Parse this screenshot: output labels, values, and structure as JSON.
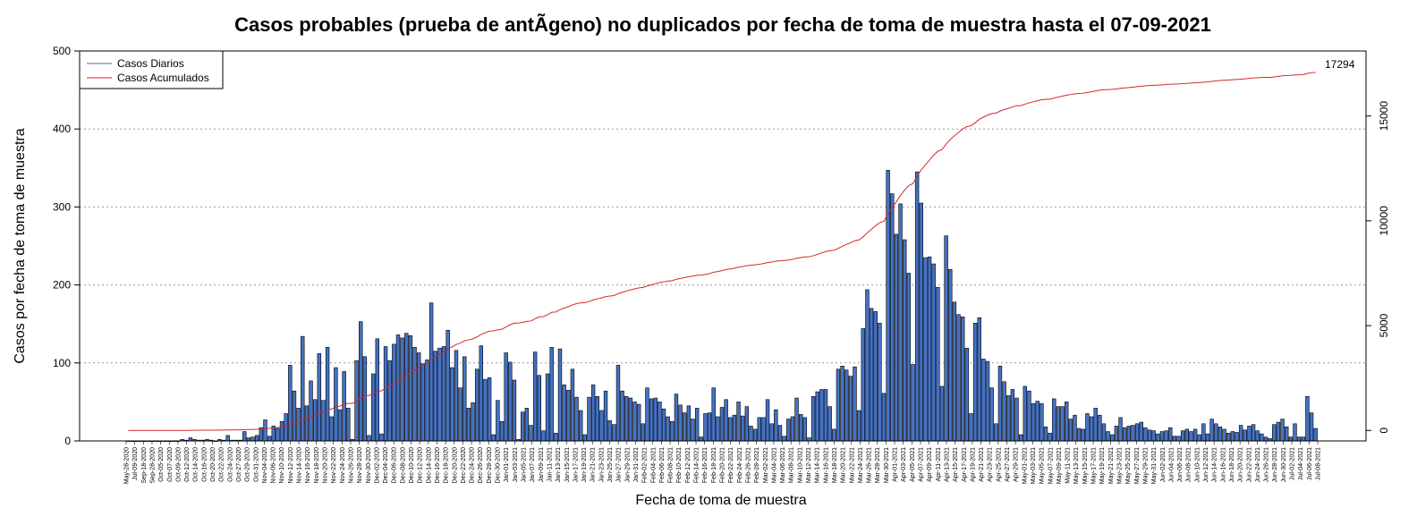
{
  "chart_data": {
    "type": "bar",
    "title": "Casos probables (prueba de antÃ­geno) no duplicados por fecha de toma de muestra hasta el 07-09-2021",
    "xlabel": "Fecha de toma de muestra",
    "ylabel": "Casos por fecha de toma de muestra",
    "ylim": [
      0,
      500
    ],
    "y_ticks": [
      0,
      100,
      200,
      300,
      400,
      500
    ],
    "y2lim": [
      -500,
      18100
    ],
    "y2_ticks": [
      0,
      5000,
      10000,
      15000
    ],
    "grid": "horizontal dotted",
    "legend_position": "top-left",
    "legend": [
      {
        "label": "Casos Diarios",
        "color": "#4a6fb0"
      },
      {
        "label": "Casos Acumulados",
        "color": "#d62728"
      }
    ],
    "bar_color": "#4472c4",
    "line_color": "#d62728",
    "cumulative_final_label": "17294",
    "x_tick_labels": [
      "May-28-2020",
      "Jul-09-2020",
      "Sep-18-2020",
      "Sep-28-2020",
      "Oct-05-2020",
      "Oct-07-2020",
      "Oct-09-2020",
      "Oct-12-2020",
      "Oct-14-2020",
      "Oct-16-2020",
      "Oct-20-2020",
      "Oct-22-2020",
      "Oct-24-2020",
      "Oct-27-2020",
      "Oct-29-2020",
      "Oct-31-2020",
      "Nov-04-2020",
      "Nov-06-2020",
      "Nov-10-2020",
      "Nov-12-2020",
      "Nov-14-2020",
      "Nov-16-2020",
      "Nov-18-2020",
      "Nov-20-2020",
      "Nov-22-2020",
      "Nov-24-2020",
      "Nov-26-2020",
      "Nov-28-2020",
      "Nov-30-2020",
      "Dec-02-2020",
      "Dec-04-2020",
      "Dec-06-2020",
      "Dec-08-2020",
      "Dec-10-2020",
      "Dec-12-2020",
      "Dec-14-2020",
      "Dec-16-2020",
      "Dec-18-2020",
      "Dec-20-2020",
      "Dec-22-2020",
      "Dec-24-2020",
      "Dec-26-2020",
      "Dec-28-2020",
      "Dec-30-2020",
      "Jan-01-2021",
      "Jan-03-2021",
      "Jan-05-2021",
      "Jan-07-2021",
      "Jan-09-2021",
      "Jan-11-2021",
      "Jan-13-2021",
      "Jan-15-2021",
      "Jan-17-2021",
      "Jan-19-2021",
      "Jan-21-2021",
      "Jan-23-2021",
      "Jan-25-2021",
      "Jan-27-2021",
      "Jan-29-2021",
      "Jan-31-2021",
      "Feb-02-2021",
      "Feb-04-2021",
      "Feb-06-2021",
      "Feb-08-2021",
      "Feb-10-2021",
      "Feb-12-2021",
      "Feb-14-2021",
      "Feb-16-2021",
      "Feb-18-2021",
      "Feb-20-2021",
      "Feb-22-2021",
      "Feb-24-2021",
      "Feb-26-2021",
      "Feb-28-2021",
      "Mar-02-2021",
      "Mar-04-2021",
      "Mar-06-2021",
      "Mar-08-2021",
      "Mar-10-2021",
      "Mar-12-2021",
      "Mar-14-2021",
      "Mar-16-2021",
      "Mar-18-2021",
      "Mar-20-2021",
      "Mar-22-2021",
      "Mar-24-2021",
      "Mar-26-2021",
      "Mar-28-2021",
      "Mar-30-2021",
      "Apr-01-2021",
      "Apr-03-2021",
      "Apr-05-2021",
      "Apr-07-2021",
      "Apr-09-2021",
      "Apr-11-2021",
      "Apr-13-2021",
      "Apr-15-2021",
      "Apr-17-2021",
      "Apr-19-2021",
      "Apr-21-2021",
      "Apr-23-2021",
      "Apr-25-2021",
      "Apr-27-2021",
      "Apr-29-2021",
      "May-01-2021",
      "May-03-2021",
      "May-05-2021",
      "May-07-2021",
      "May-09-2021",
      "May-11-2021",
      "May-13-2021",
      "May-15-2021",
      "May-17-2021",
      "May-19-2021",
      "May-21-2021",
      "May-23-2021",
      "May-25-2021",
      "May-27-2021",
      "May-29-2021",
      "May-31-2021",
      "Jun-02-2021",
      "Jun-04-2021",
      "Jun-06-2021",
      "Jun-08-2021",
      "Jun-10-2021",
      "Jun-12-2021",
      "Jun-14-2021",
      "Jun-16-2021",
      "Jun-18-2021",
      "Jun-20-2021",
      "Jun-22-2021",
      "Jun-24-2021",
      "Jun-26-2021",
      "Jun-28-2021",
      "Jun-30-2021",
      "Jul-02-2021",
      "Jul-04-2021",
      "Jul-06-2021",
      "Jul-08-2021"
    ],
    "values": [
      0,
      0,
      0,
      0,
      0,
      0,
      0,
      0,
      0,
      0,
      0,
      0,
      0,
      2,
      1,
      4,
      2,
      1,
      1,
      2,
      1,
      0,
      2,
      1,
      7,
      1,
      1,
      1,
      12,
      4,
      5,
      7,
      17,
      27,
      6,
      19,
      16,
      25,
      35,
      97,
      64,
      42,
      134,
      45,
      77,
      53,
      112,
      52,
      120,
      31,
      94,
      40,
      89,
      42,
      2,
      103,
      153,
      108,
      7,
      86,
      131,
      9,
      121,
      103,
      124,
      136,
      132,
      138,
      135,
      120,
      113,
      99,
      104,
      177,
      115,
      119,
      121,
      142,
      94,
      116,
      68,
      108,
      42,
      49,
      92,
      122,
      79,
      81,
      8,
      52,
      25,
      113,
      101,
      78,
      2,
      37,
      42,
      20,
      114,
      84,
      13,
      86,
      120,
      10,
      118,
      72,
      65,
      92,
      56,
      39,
      8,
      56,
      72,
      57,
      39,
      64,
      26,
      21,
      97,
      64,
      57,
      55,
      50,
      47,
      22,
      68,
      54,
      55,
      50,
      41,
      31,
      25,
      60,
      46,
      36,
      45,
      28,
      42,
      5,
      35,
      36,
      68,
      31,
      43,
      53,
      30,
      33,
      50,
      32,
      44,
      19,
      15,
      30,
      30,
      53,
      22,
      40,
      20,
      6,
      28,
      31,
      55,
      34,
      30,
      4,
      57,
      63,
      66,
      66,
      44,
      15,
      92,
      96,
      91,
      83,
      95,
      39,
      144,
      194,
      170,
      166,
      151,
      61,
      347,
      317,
      265,
      304,
      258,
      215,
      98,
      345,
      305,
      235,
      236,
      227,
      197,
      70,
      263,
      220,
      178,
      162,
      159,
      119,
      35,
      151,
      158,
      105,
      102,
      68,
      22,
      96,
      76,
      58,
      66,
      55,
      8,
      70,
      64,
      48,
      51,
      48,
      18,
      10,
      54,
      44,
      44,
      50,
      28,
      33,
      16,
      15,
      35,
      31,
      42,
      33,
      22,
      12,
      8,
      19,
      30,
      17,
      19,
      20,
      22,
      24,
      17,
      14,
      13,
      9,
      12,
      13,
      17,
      6,
      6,
      13,
      15,
      12,
      15,
      8,
      22,
      9,
      28,
      22,
      18,
      15,
      10,
      12,
      11,
      20,
      14,
      19,
      21,
      13,
      9,
      5,
      3,
      21,
      24,
      28,
      18,
      5,
      22,
      5,
      5,
      57,
      36,
      16
    ]
  }
}
